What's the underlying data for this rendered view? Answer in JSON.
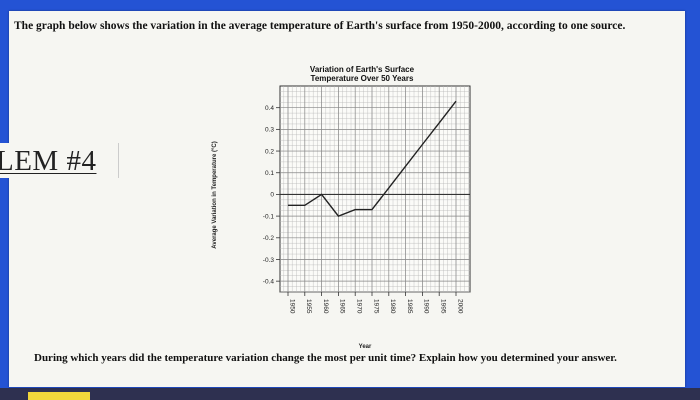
{
  "page": {
    "question": "The graph below shows the variation in the average temperature of Earth's surface from 1950-2000, according to one source.",
    "problem_label": "LEM #4",
    "prompt": "During which years did the temperature variation change the most per unit time? Explain how you determined your answer."
  },
  "chart_data": {
    "type": "line",
    "title_line1": "Variation of Earth's Surface",
    "title_line2": "Temperature Over 50 Years",
    "xlabel": "Year",
    "ylabel": "Average Variation in Temperature (°C)",
    "x": [
      1950,
      1955,
      1960,
      1965,
      1970,
      1975,
      1980,
      1985,
      1990,
      1995,
      2000
    ],
    "series": [
      {
        "values": [
          -0.05,
          -0.05,
          0.0,
          -0.1,
          -0.07,
          -0.07,
          0.03,
          0.13,
          0.23,
          0.33,
          0.43
        ]
      }
    ],
    "x_ticks": [
      "1950",
      "1955",
      "1960",
      "1965",
      "1970",
      "1975",
      "1980",
      "1985",
      "1990",
      "1995",
      "2000"
    ],
    "y_ticks": [
      "0.4",
      "0.3",
      "0.2",
      "0.1",
      "0",
      "-0.1",
      "-0.2",
      "-0.3",
      "-0.4"
    ],
    "xlim": [
      1950,
      2000
    ],
    "ylim": [
      -0.45,
      0.5
    ],
    "grid": true,
    "line_color": "#222222"
  }
}
